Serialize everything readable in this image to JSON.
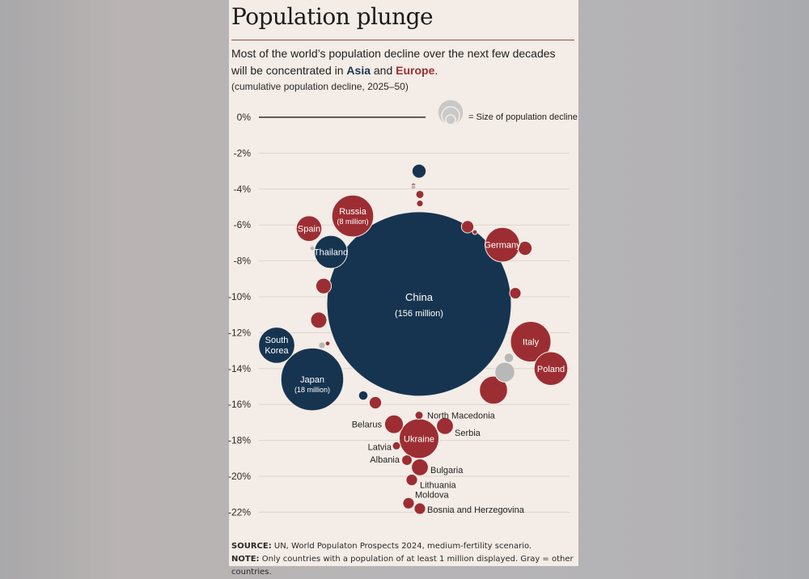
{
  "title": "Population plunge",
  "subtitle": {
    "before": "Most of the world’s population decline over the next few decades will be concentrated in ",
    "asia": "Asia",
    "and": " and ",
    "europe": "Europe",
    "after": "."
  },
  "subnote": "(cumulative population decline, 2025–50)",
  "legend": {
    "label": "= Size of population decline"
  },
  "footer": {
    "source_label": "SOURCE:",
    "source_text": " UN, World Populaton Prospects 2024, medium-fertility scenario.",
    "note_label": "NOTE:",
    "note_text": " Only countries with a population of at least 1 million displayed. Gray = other countries."
  },
  "colors": {
    "asia": "#163450",
    "europe": "#9c2e33",
    "other": "#b8b8b8",
    "grid": "#dcd4cd",
    "zero_line": "#2b2b2b"
  },
  "chart_data": {
    "type": "scatter",
    "encoding": "bubble",
    "ylabel": "",
    "ylim": [
      -22,
      0
    ],
    "yticks": [
      0,
      -2,
      -4,
      -6,
      -8,
      -10,
      -12,
      -14,
      -16,
      -18,
      -20,
      -22
    ],
    "ytick_labels": [
      "0%",
      "-2%",
      "-4%",
      "-6%",
      "-8%",
      "-10%",
      "-12%",
      "-14%",
      "-16%",
      "-18%",
      "-20%",
      "-22%"
    ],
    "grid": true,
    "points": [
      {
        "label": "China",
        "sublabel": "(156 million)",
        "region": "asia",
        "y": -10.4,
        "decline_million": 156
      },
      {
        "label": "Japan",
        "sublabel": "(18 million)",
        "region": "asia",
        "y": -14.6,
        "decline_million": 18
      },
      {
        "label": "South Korea",
        "region": "asia",
        "y": -12.7,
        "decline_million": 6
      },
      {
        "label": "Thailand",
        "region": "asia",
        "y": -7.5,
        "decline_million": 5
      },
      {
        "label": "Russia",
        "sublabel": "(8 million)",
        "region": "europe",
        "y": -5.5,
        "decline_million": 8
      },
      {
        "label": "Spain",
        "region": "europe",
        "y": -6.2,
        "decline_million": 3
      },
      {
        "label": "Germany",
        "region": "europe",
        "y": -7.1,
        "decline_million": 5.5
      },
      {
        "label": "Italy",
        "region": "europe",
        "y": -12.5,
        "decline_million": 7.5
      },
      {
        "label": "Poland",
        "region": "europe",
        "y": -14.0,
        "decline_million": 5.2
      },
      {
        "label": "Ukraine",
        "region": "europe",
        "y": -17.9,
        "decline_million": 7.2
      },
      {
        "label": "North Macedonia",
        "region": "europe",
        "y": -16.6,
        "decline_million": 0.3
      },
      {
        "label": "Belarus",
        "region": "europe",
        "y": -17.1,
        "decline_million": 1.6
      },
      {
        "label": "Serbia",
        "region": "europe",
        "y": -17.2,
        "decline_million": 1.3
      },
      {
        "label": "Latvia",
        "region": "europe",
        "y": -18.3,
        "decline_million": 0.3
      },
      {
        "label": "Albania",
        "region": "europe",
        "y": -19.1,
        "decline_million": 0.5
      },
      {
        "label": "Bulgaria",
        "region": "europe",
        "y": -19.5,
        "decline_million": 1.3
      },
      {
        "label": "Lithuania",
        "region": "europe",
        "y": -20.2,
        "decline_million": 0.6
      },
      {
        "label": "Moldova",
        "region": "europe",
        "y": -21.5,
        "decline_million": 0.6
      },
      {
        "label": "Bosnia and Herzegovina",
        "region": "europe",
        "y": -21.8,
        "decline_million": 0.6
      },
      {
        "label": "",
        "region": "asia",
        "y": -3.0,
        "decline_million": 0.9
      },
      {
        "label": "",
        "region": "europe",
        "y": -3.8,
        "decline_million": 0.1
      },
      {
        "label": "",
        "region": "other",
        "y": -3.9,
        "decline_million": 0.1
      },
      {
        "label": "",
        "region": "europe",
        "y": -4.3,
        "decline_million": 0.3
      },
      {
        "label": "",
        "region": "europe",
        "y": -4.8,
        "decline_million": 0.2
      },
      {
        "label": "",
        "region": "europe",
        "y": -6.1,
        "decline_million": 0.7
      },
      {
        "label": "",
        "region": "europe",
        "y": -6.4,
        "decline_million": 0.1
      },
      {
        "label": "",
        "region": "other",
        "y": -7.3,
        "decline_million": 0.1
      },
      {
        "label": "",
        "region": "europe",
        "y": -7.3,
        "decline_million": 0.9
      },
      {
        "label": "",
        "region": "europe",
        "y": -9.4,
        "decline_million": 1.1
      },
      {
        "label": "",
        "region": "europe",
        "y": -9.8,
        "decline_million": 0.6
      },
      {
        "label": "",
        "region": "europe",
        "y": -11.3,
        "decline_million": 1.2
      },
      {
        "label": "",
        "region": "other",
        "y": -12.7,
        "decline_million": 0.2
      },
      {
        "label": "",
        "region": "europe",
        "y": -12.6,
        "decline_million": 0.1
      },
      {
        "label": "",
        "region": "other",
        "y": -13.4,
        "decline_million": 0.4
      },
      {
        "label": "",
        "region": "other",
        "y": -14.2,
        "decline_million": 1.8
      },
      {
        "label": "",
        "region": "europe",
        "y": -15.2,
        "decline_million": 3.6
      },
      {
        "label": "",
        "region": "asia",
        "y": -15.5,
        "decline_million": 0.4
      },
      {
        "label": "",
        "region": "europe",
        "y": -15.9,
        "decline_million": 0.7
      }
    ]
  }
}
